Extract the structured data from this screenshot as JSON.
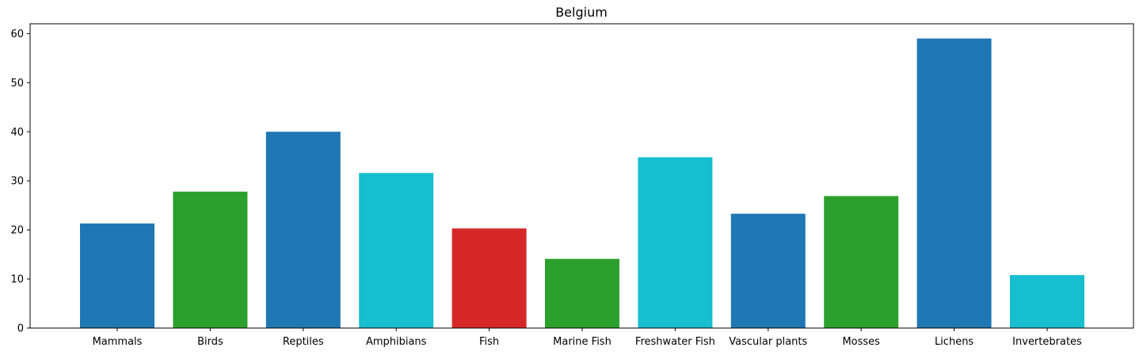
{
  "chart_data": {
    "type": "bar",
    "title": "Belgium",
    "xlabel": "",
    "ylabel": "",
    "categories": [
      "Mammals",
      "Birds",
      "Reptiles",
      "Amphibians",
      "Fish",
      "Marine Fish",
      "Freshwater Fish",
      "Vascular plants",
      "Mosses",
      "Lichens",
      "Invertebrates"
    ],
    "values": [
      21.3,
      27.8,
      40.0,
      31.6,
      20.3,
      14.1,
      34.8,
      23.3,
      26.9,
      59.0,
      10.8
    ],
    "colors": [
      "#1f77b4",
      "#2ca02c",
      "#1f77b4",
      "#17becf",
      "#d62728",
      "#2ca02c",
      "#17becf",
      "#1f77b4",
      "#2ca02c",
      "#1f77b4",
      "#17becf"
    ],
    "ylim": [
      0,
      62
    ],
    "yticks": [
      0,
      10,
      20,
      30,
      40,
      50,
      60
    ],
    "grid": false,
    "legend": "none"
  }
}
